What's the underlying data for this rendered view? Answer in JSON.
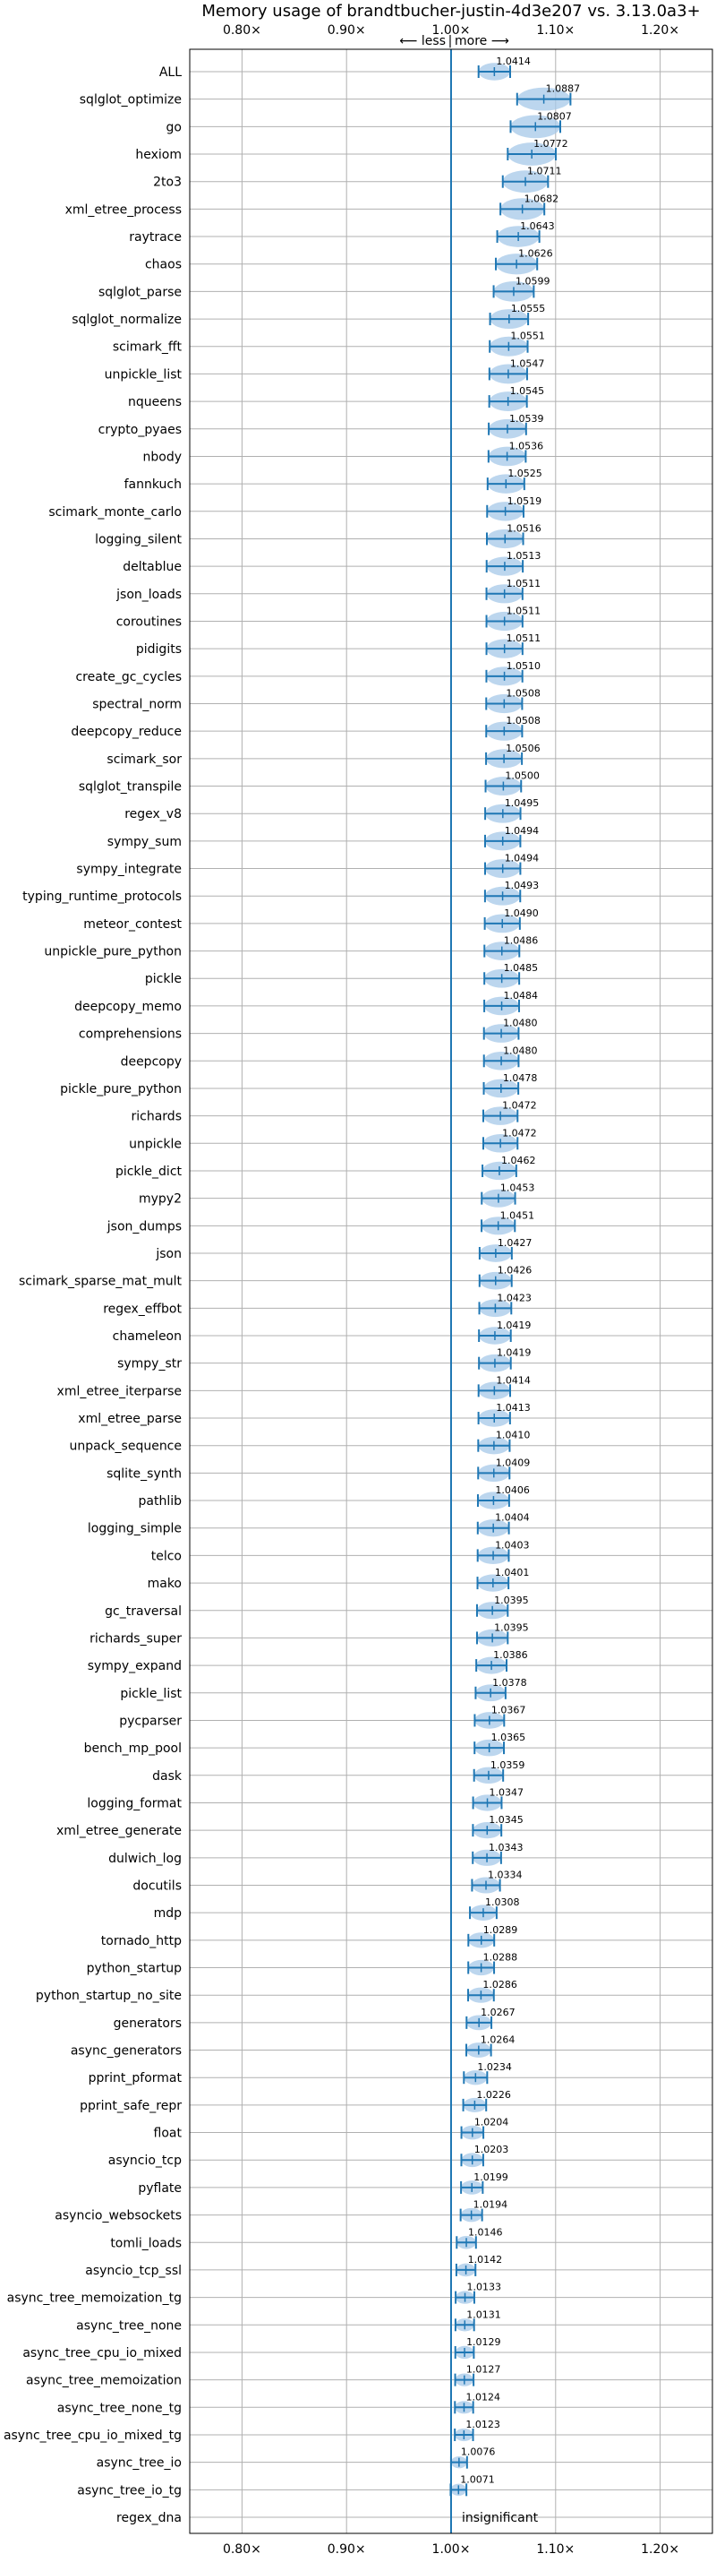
{
  "chart_data": {
    "type": "violin",
    "title": "Memory usage of brandtbucher-justin-4d3e207 vs. 3.13.0a3+",
    "direction_labels": {
      "less": "⟵ less",
      "more": "more ⟶"
    },
    "xlim": [
      0.75,
      1.25
    ],
    "x_ticks": [
      0.8,
      0.9,
      1.0,
      1.1,
      1.2
    ],
    "x_tick_labels": [
      "0.80×",
      "0.90×",
      "1.00×",
      "1.10×",
      "1.20×"
    ],
    "reference_line": 1.0,
    "grid": true,
    "colors": {
      "violin": "#a6c8e8",
      "line": "#1f77b4",
      "reference": "#1f77b4"
    },
    "categories": [
      "ALL",
      "sqlglot_optimize",
      "go",
      "hexiom",
      "2to3",
      "xml_etree_process",
      "raytrace",
      "chaos",
      "sqlglot_parse",
      "sqlglot_normalize",
      "scimark_fft",
      "unpickle_list",
      "nqueens",
      "crypto_pyaes",
      "nbody",
      "fannkuch",
      "scimark_monte_carlo",
      "logging_silent",
      "deltablue",
      "json_loads",
      "coroutines",
      "pidigits",
      "create_gc_cycles",
      "spectral_norm",
      "deepcopy_reduce",
      "scimark_sor",
      "sqlglot_transpile",
      "regex_v8",
      "sympy_sum",
      "sympy_integrate",
      "typing_runtime_protocols",
      "meteor_contest",
      "unpickle_pure_python",
      "pickle",
      "deepcopy_memo",
      "comprehensions",
      "deepcopy",
      "pickle_pure_python",
      "richards",
      "unpickle",
      "pickle_dict",
      "mypy2",
      "json_dumps",
      "json",
      "scimark_sparse_mat_mult",
      "regex_effbot",
      "chameleon",
      "sympy_str",
      "xml_etree_iterparse",
      "xml_etree_parse",
      "unpack_sequence",
      "sqlite_synth",
      "pathlib",
      "logging_simple",
      "telco",
      "mako",
      "gc_traversal",
      "richards_super",
      "sympy_expand",
      "pickle_list",
      "pycparser",
      "bench_mp_pool",
      "dask",
      "logging_format",
      "xml_etree_generate",
      "dulwich_log",
      "docutils",
      "mdp",
      "tornado_http",
      "python_startup",
      "python_startup_no_site",
      "generators",
      "async_generators",
      "pprint_pformat",
      "pprint_safe_repr",
      "float",
      "asyncio_tcp",
      "pyflate",
      "asyncio_websockets",
      "tomli_loads",
      "asyncio_tcp_ssl",
      "async_tree_memoization_tg",
      "async_tree_none",
      "async_tree_cpu_io_mixed",
      "async_tree_memoization",
      "async_tree_none_tg",
      "async_tree_cpu_io_mixed_tg",
      "async_tree_io",
      "async_tree_io_tg",
      "regex_dna"
    ],
    "values": [
      1.0414,
      1.0887,
      1.0807,
      1.0772,
      1.0711,
      1.0682,
      1.0643,
      1.0626,
      1.0599,
      1.0555,
      1.0551,
      1.0547,
      1.0545,
      1.0539,
      1.0536,
      1.0525,
      1.0519,
      1.0516,
      1.0513,
      1.0511,
      1.0511,
      1.0511,
      1.051,
      1.0508,
      1.0508,
      1.0506,
      1.05,
      1.0495,
      1.0494,
      1.0494,
      1.0493,
      1.049,
      1.0486,
      1.0485,
      1.0484,
      1.048,
      1.048,
      1.0478,
      1.0472,
      1.0472,
      1.0462,
      1.0453,
      1.0451,
      1.0427,
      1.0426,
      1.0423,
      1.0419,
      1.0419,
      1.0414,
      1.0413,
      1.041,
      1.0409,
      1.0406,
      1.0404,
      1.0403,
      1.0401,
      1.0395,
      1.0395,
      1.0386,
      1.0378,
      1.0367,
      1.0365,
      1.0359,
      1.0347,
      1.0345,
      1.0343,
      1.0334,
      1.0308,
      1.0289,
      1.0288,
      1.0286,
      1.0267,
      1.0264,
      1.0234,
      1.0226,
      1.0204,
      1.0203,
      1.0199,
      1.0194,
      1.0146,
      1.0142,
      1.0133,
      1.0131,
      1.0129,
      1.0127,
      1.0124,
      1.0123,
      1.0076,
      1.0071,
      null
    ],
    "value_labels": [
      "1.0414",
      "1.0887",
      "1.0807",
      "1.0772",
      "1.0711",
      "1.0682",
      "1.0643",
      "1.0626",
      "1.0599",
      "1.0555",
      "1.0551",
      "1.0547",
      "1.0545",
      "1.0539",
      "1.0536",
      "1.0525",
      "1.0519",
      "1.0516",
      "1.0513",
      "1.0511",
      "1.0511",
      "1.0511",
      "1.0510",
      "1.0508",
      "1.0508",
      "1.0506",
      "1.0500",
      "1.0495",
      "1.0494",
      "1.0494",
      "1.0493",
      "1.0490",
      "1.0486",
      "1.0485",
      "1.0484",
      "1.0480",
      "1.0480",
      "1.0478",
      "1.0472",
      "1.0472",
      "1.0462",
      "1.0453",
      "1.0451",
      "1.0427",
      "1.0426",
      "1.0423",
      "1.0419",
      "1.0419",
      "1.0414",
      "1.0413",
      "1.0410",
      "1.0409",
      "1.0406",
      "1.0404",
      "1.0403",
      "1.0401",
      "1.0395",
      "1.0395",
      "1.0386",
      "1.0378",
      "1.0367",
      "1.0365",
      "1.0359",
      "1.0347",
      "1.0345",
      "1.0343",
      "1.0334",
      "1.0308",
      "1.0289",
      "1.0288",
      "1.0286",
      "1.0267",
      "1.0264",
      "1.0234",
      "1.0226",
      "1.0204",
      "1.0203",
      "1.0199",
      "1.0194",
      "1.0146",
      "1.0142",
      "1.0133",
      "1.0131",
      "1.0129",
      "1.0127",
      "1.0124",
      "1.0123",
      "1.0076",
      "1.0071",
      ""
    ],
    "annotations": {
      "regex_dna": "insignificant"
    }
  }
}
